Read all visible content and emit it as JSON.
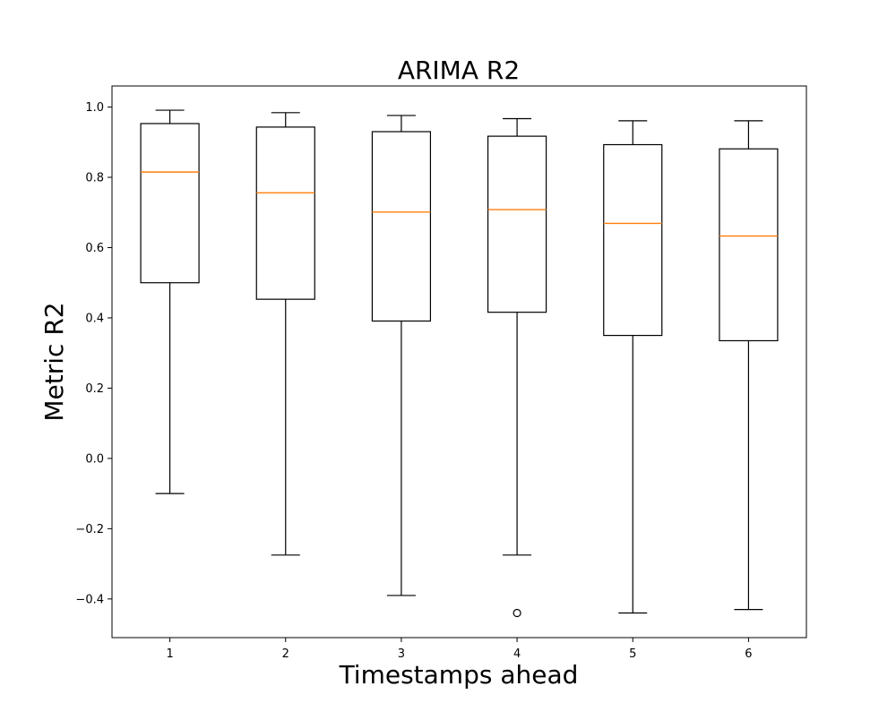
{
  "chart_data": {
    "type": "boxplot",
    "title": "ARIMA R2",
    "xlabel": "Timestamps ahead",
    "ylabel": "Metric R2",
    "categories": [
      "1",
      "2",
      "3",
      "4",
      "5",
      "6"
    ],
    "ylim": [
      -0.51,
      1.06
    ],
    "yticks": [
      -0.4,
      -0.2,
      0.0,
      0.2,
      0.4,
      0.6,
      0.8,
      1.0
    ],
    "ytick_labels": [
      "−0.4",
      "−0.2",
      "0.0",
      "0.2",
      "0.4",
      "0.6",
      "0.8",
      "1.0"
    ],
    "grid": false,
    "boxes": [
      {
        "category": "1",
        "whisker_low": -0.1,
        "q1": 0.5,
        "median": 0.815,
        "q3": 0.953,
        "whisker_high": 0.991,
        "outliers": []
      },
      {
        "category": "2",
        "whisker_low": -0.275,
        "q1": 0.453,
        "median": 0.756,
        "q3": 0.943,
        "whisker_high": 0.984,
        "outliers": []
      },
      {
        "category": "3",
        "whisker_low": -0.39,
        "q1": 0.391,
        "median": 0.701,
        "q3": 0.93,
        "whisker_high": 0.976,
        "outliers": []
      },
      {
        "category": "4",
        "whisker_low": -0.275,
        "q1": 0.416,
        "median": 0.708,
        "q3": 0.917,
        "whisker_high": 0.967,
        "outliers": [
          -0.44
        ]
      },
      {
        "category": "5",
        "whisker_low": -0.44,
        "q1": 0.35,
        "median": 0.669,
        "q3": 0.893,
        "whisker_high": 0.961,
        "outliers": []
      },
      {
        "category": "6",
        "whisker_low": -0.43,
        "q1": 0.335,
        "median": 0.633,
        "q3": 0.881,
        "whisker_high": 0.961,
        "outliers": []
      }
    ],
    "colors": {
      "box": "#000000",
      "median": "#ff7f0e",
      "axes": "#000000",
      "background": "#ffffff"
    }
  }
}
